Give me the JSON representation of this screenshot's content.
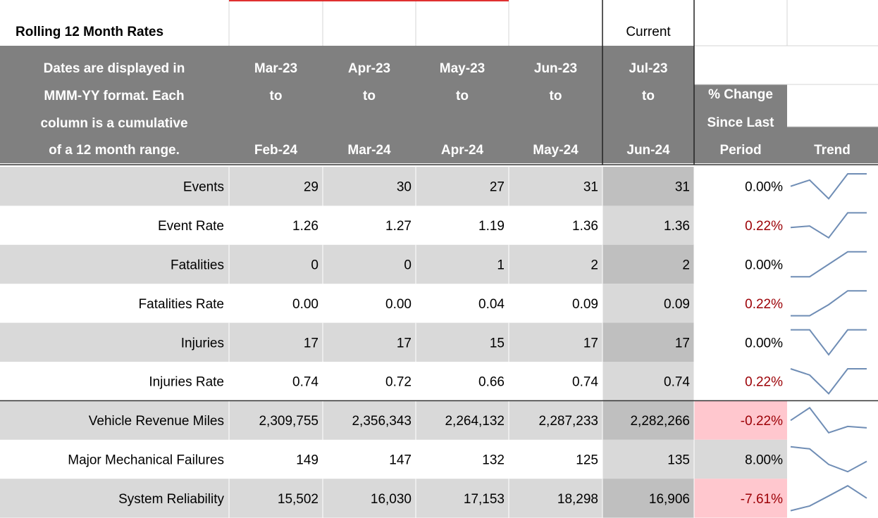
{
  "title": "Rolling 12 Month Rates",
  "current_label": "Current",
  "description": [
    "Dates are displayed in",
    "MMM-YY format. Each",
    "column is a cumulative",
    "of a 12  month range."
  ],
  "connector": "to",
  "columns": [
    {
      "from": "Mar-23",
      "to": "Feb-24"
    },
    {
      "from": "Apr-23",
      "to": "Mar-24"
    },
    {
      "from": "May-23",
      "to": "Apr-24"
    },
    {
      "from": "Jun-23",
      "to": "May-24"
    },
    {
      "from": "Jul-23",
      "to": "Jun-24"
    }
  ],
  "change_header": [
    "% Change",
    "Since Last",
    "Period"
  ],
  "trend_header": "Trend",
  "rows": [
    {
      "label": "Events",
      "values": [
        29,
        30,
        27,
        31,
        31
      ],
      "value_labels": [
        "29",
        "30",
        "27",
        "31",
        "31"
      ],
      "change": "0.00%"
    },
    {
      "label": "Event Rate",
      "values": [
        1.26,
        1.27,
        1.19,
        1.36,
        1.36
      ],
      "value_labels": [
        "1.26",
        "1.27",
        "1.19",
        "1.36",
        "1.36"
      ],
      "change": "0.22%",
      "change_style": "red"
    },
    {
      "label": "Fatalities",
      "values": [
        0,
        0,
        1,
        2,
        2
      ],
      "value_labels": [
        "0",
        "0",
        "1",
        "2",
        "2"
      ],
      "change": "0.00%"
    },
    {
      "label": "Fatalities Rate",
      "values": [
        0,
        0,
        0.04,
        0.09,
        0.09
      ],
      "value_labels": [
        "0.00",
        "0.00",
        "0.04",
        "0.09",
        "0.09"
      ],
      "change": "0.22%",
      "change_style": "red"
    },
    {
      "label": "Injuries",
      "values": [
        17,
        17,
        15,
        17,
        17
      ],
      "value_labels": [
        "17",
        "17",
        "15",
        "17",
        "17"
      ],
      "change": "0.00%"
    },
    {
      "label": "Injuries Rate",
      "values": [
        0.74,
        0.72,
        0.66,
        0.74,
        0.74
      ],
      "value_labels": [
        "0.74",
        "0.72",
        "0.66",
        "0.74",
        "0.74"
      ],
      "change": "0.22%",
      "change_style": "red"
    },
    {
      "label": "Vehicle Revenue Miles",
      "values": [
        2309755,
        2356343,
        2264132,
        2287233,
        2282266
      ],
      "value_labels": [
        "2,309,755",
        "2,356,343",
        "2,264,132",
        "2,287,233",
        "2,282,266"
      ],
      "change": "-0.22%",
      "change_style": "pink"
    },
    {
      "label": "Major Mechanical Failures",
      "values": [
        149,
        147,
        132,
        125,
        135
      ],
      "value_labels": [
        "149",
        "147",
        "132",
        "125",
        "135"
      ],
      "change": "8.00%"
    },
    {
      "label": "System Reliability",
      "values": [
        15502,
        16030,
        17153,
        18298,
        16906
      ],
      "value_labels": [
        "15,502",
        "16,030",
        "17,153",
        "18,298",
        "16,906"
      ],
      "change": "-7.61%",
      "change_style": "pink"
    }
  ]
}
